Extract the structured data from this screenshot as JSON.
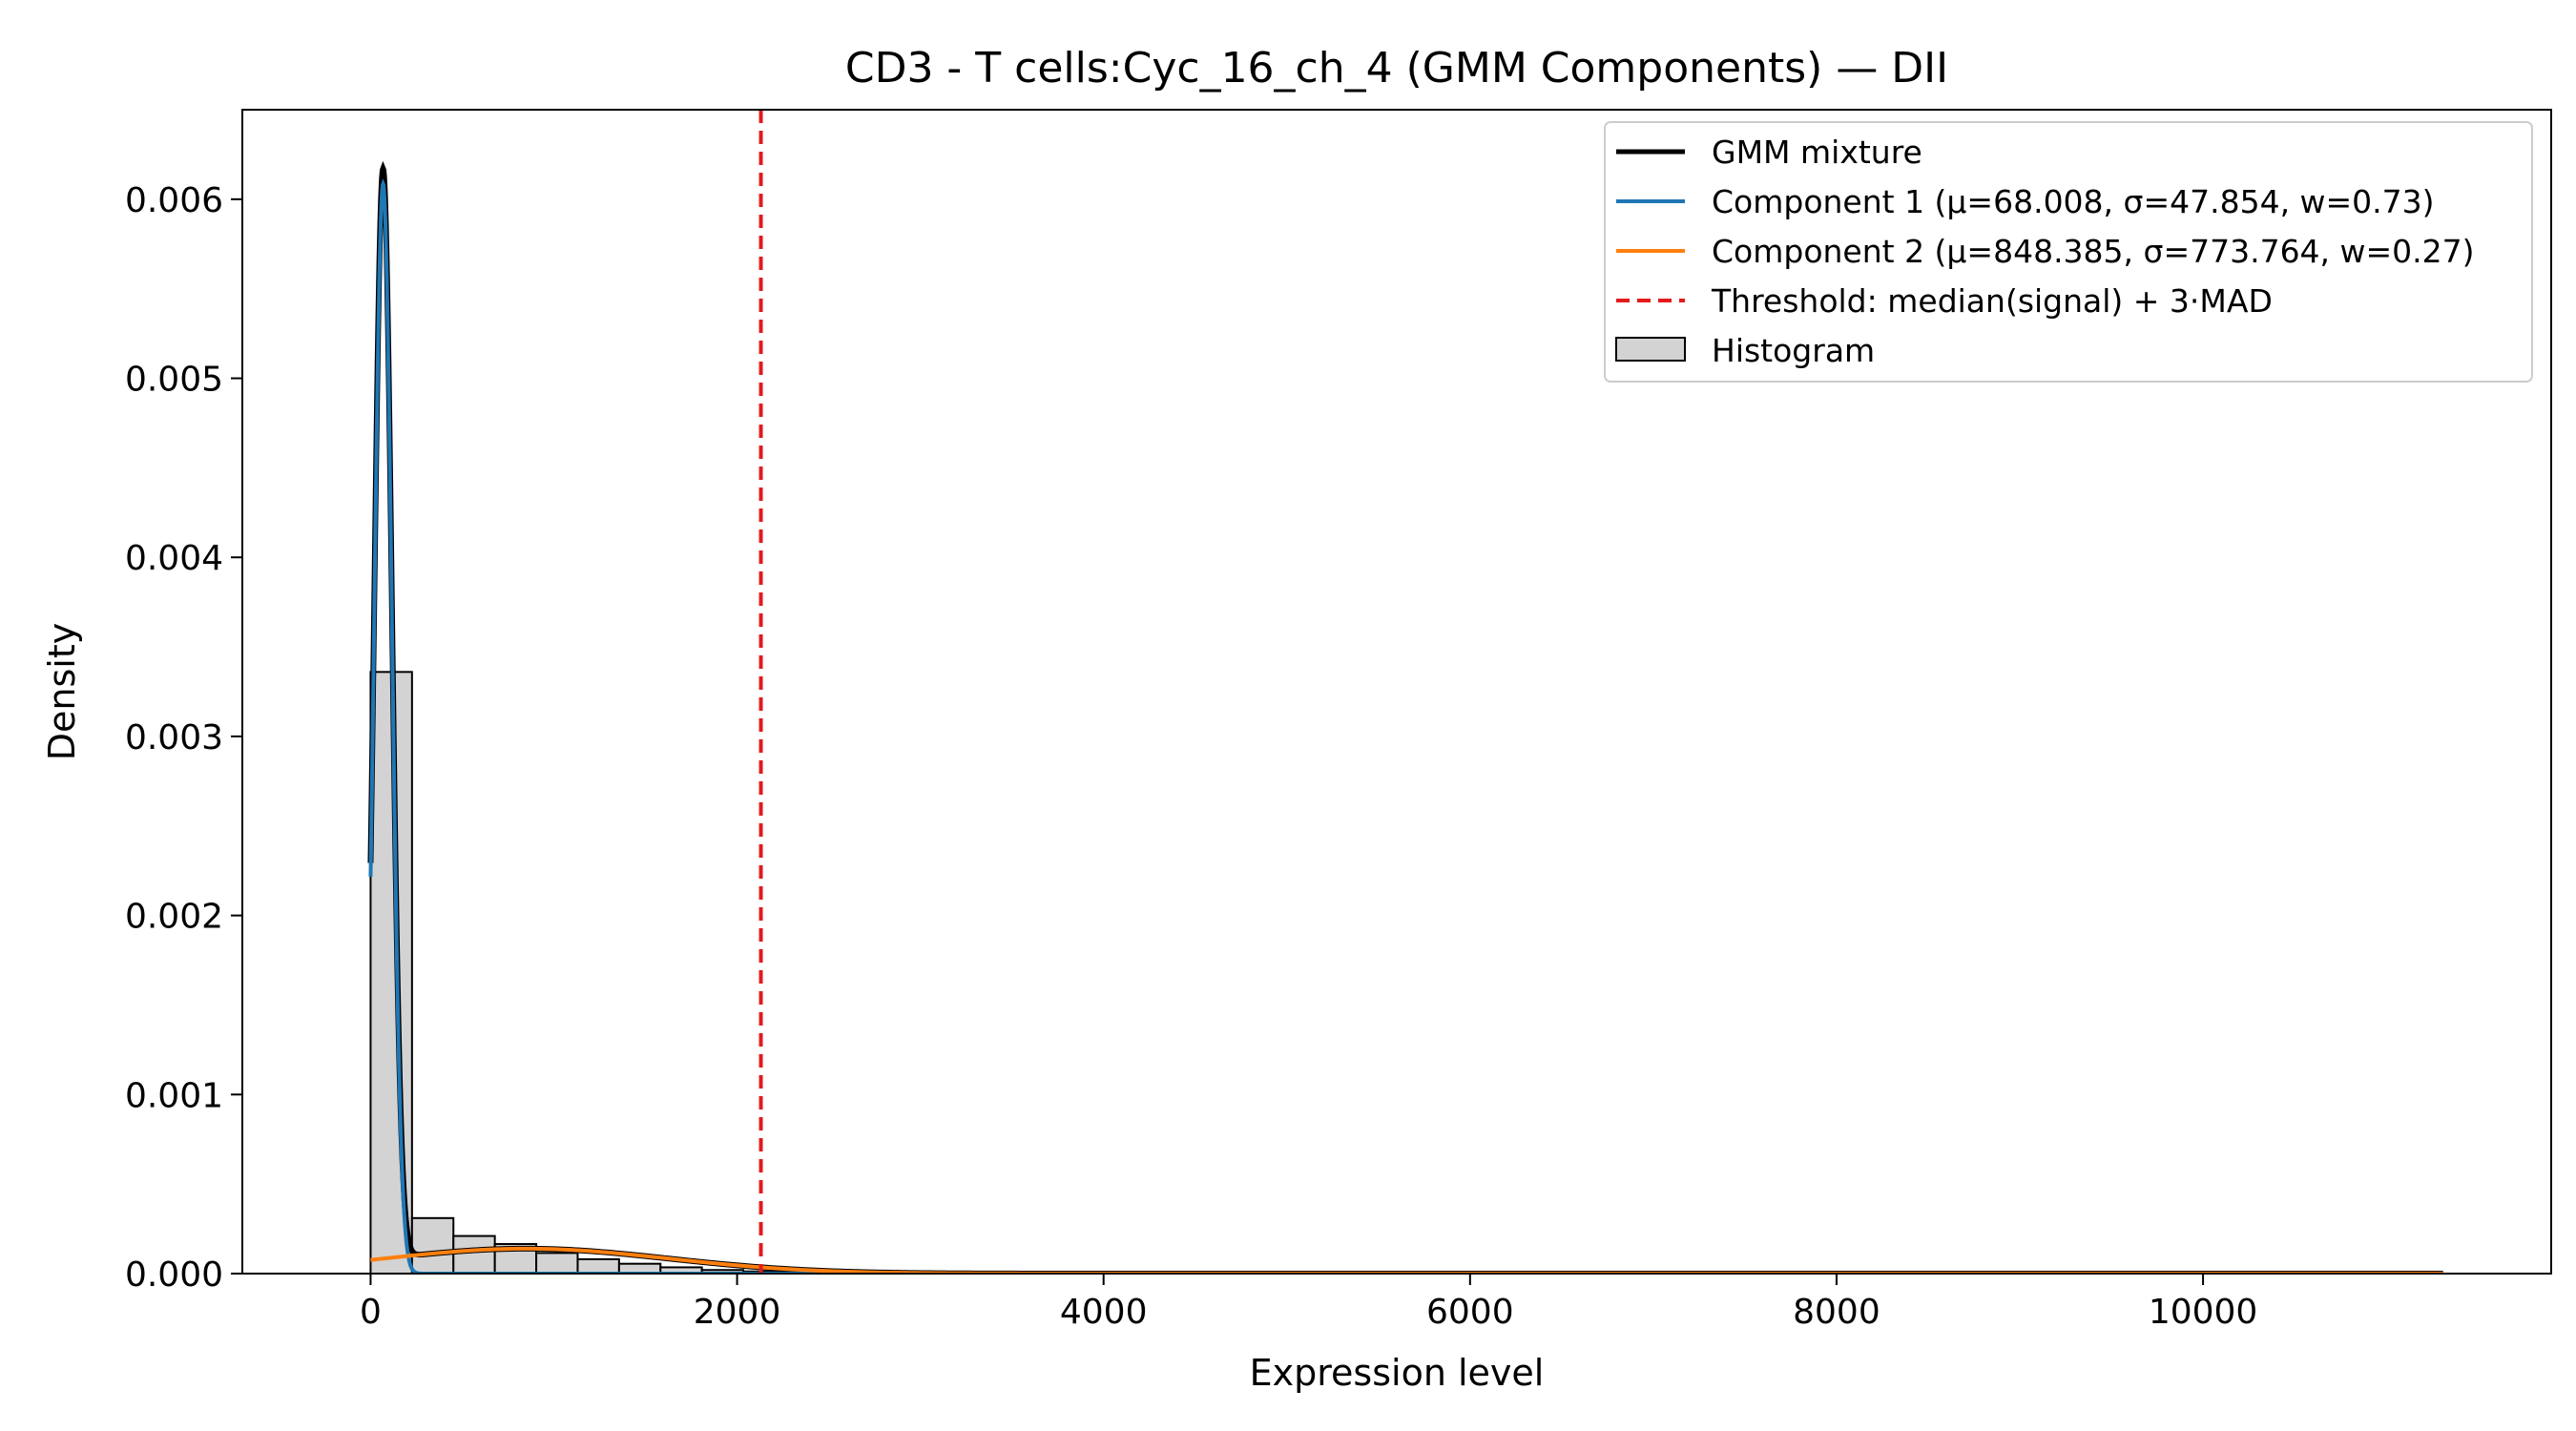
{
  "chart_data": {
    "type": "histogram",
    "title": "CD3 - T cells:Cyc_16_ch_4 (GMM Components) — DII",
    "xlabel": "Expression level",
    "ylabel": "Density",
    "xlim": [
      -700,
      11900
    ],
    "ylim": [
      0,
      0.0065
    ],
    "x_ticks": [
      0,
      2000,
      4000,
      6000,
      8000,
      10000
    ],
    "x_tick_labels": [
      "0",
      "2000",
      "4000",
      "6000",
      "8000",
      "10000"
    ],
    "y_ticks": [
      0,
      0.001,
      0.002,
      0.003,
      0.004,
      0.005,
      0.006
    ],
    "y_tick_labels": [
      "0.000",
      "0.001",
      "0.002",
      "0.003",
      "0.004",
      "0.005",
      "0.006"
    ],
    "grid": false,
    "legend_position": "top-right",
    "histogram": {
      "name": "Histogram",
      "bin_width": 226,
      "bin_starts": [
        0,
        226,
        452,
        678,
        904,
        1130,
        1356,
        1582,
        1808,
        2034,
        2260,
        2486,
        2712,
        2938,
        3164
      ],
      "densities": [
        0.00336,
        0.00031,
        0.00021,
        0.000165,
        0.000115,
        8e-05,
        5.5e-05,
        3.5e-05,
        2e-05,
        1.2e-05,
        7e-06,
        4e-06,
        2.5e-06,
        1.5e-06,
        1e-06
      ],
      "fill_color": "#d3d3d3",
      "edge_color": "#000000"
    },
    "gmm": {
      "x_range": [
        0,
        11320
      ],
      "mixture": {
        "name": "GMM mixture",
        "color": "#000000"
      },
      "components": [
        {
          "name": "Component 1 (μ=68.008, σ=47.854, w=0.73)",
          "mu": 68.008,
          "sigma": 47.854,
          "weight": 0.73,
          "color": "#1f77b4"
        },
        {
          "name": "Component 2 (μ=848.385, σ=773.764, w=0.27)",
          "mu": 848.385,
          "sigma": 773.764,
          "weight": 0.27,
          "color": "#ff7f0e"
        }
      ]
    },
    "threshold": {
      "name": "Threshold: median(signal) + 3·MAD",
      "x": 2130,
      "color": "#e41a1c"
    }
  }
}
